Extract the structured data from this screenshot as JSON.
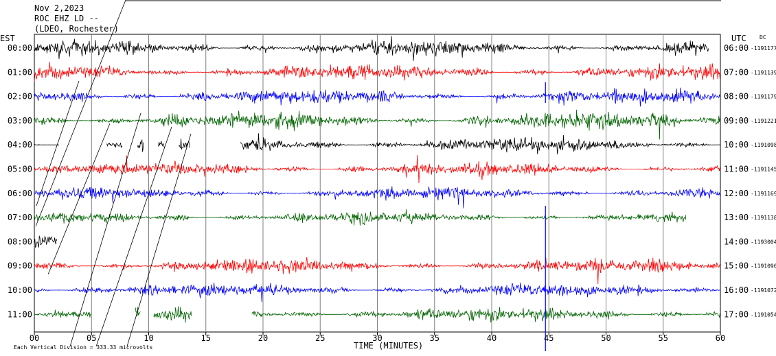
{
  "header": {
    "date": "Nov 2,2023",
    "station": "ROC EHZ LD --",
    "network": "(LDEO, Rochester)"
  },
  "left_label": "EST",
  "right_label": "UTC",
  "dc_label": "DC",
  "footer": {
    "xlabel": "TIME (MINUTES)",
    "scale_note": "Each Vertical Division = 333.33 microvolts"
  },
  "colors": {
    "black": "#000000",
    "red": "#ff0000",
    "blue": "#0000ff",
    "green": "#006400"
  },
  "chart_data": {
    "type": "line",
    "title": "Nov 2,2023 ROC EHZ LD -- (LDEO, Rochester)",
    "xlabel": "TIME (MINUTES)",
    "ylabel": "",
    "xlim": [
      0,
      60
    ],
    "x_ticks": [
      "00",
      "05",
      "10",
      "15",
      "20",
      "25",
      "30",
      "35",
      "40",
      "45",
      "50",
      "55",
      "60"
    ],
    "grid": true,
    "rows": [
      {
        "est": "00:00",
        "utc": "06:00",
        "dc": "-1191177",
        "color": "black",
        "start": 0,
        "end": 59,
        "level": 0.85
      },
      {
        "est": "01:00",
        "utc": "07:00",
        "dc": "-1191139",
        "color": "red",
        "start": 0,
        "end": 60,
        "level": 0.9
      },
      {
        "est": "02:00",
        "utc": "08:00",
        "dc": "-1191179",
        "color": "blue",
        "start": 0,
        "end": 60,
        "level": 0.85
      },
      {
        "est": "03:00",
        "utc": "09:00",
        "dc": "-1191221",
        "color": "green",
        "start": 0,
        "end": 60,
        "level": 1.0
      },
      {
        "est": "04:00",
        "utc": "10:00",
        "dc": "-1191098",
        "color": "black",
        "start": 0,
        "end": 60,
        "level": 0.85
      },
      {
        "est": "05:00",
        "utc": "11:00",
        "dc": "-1191145",
        "color": "red",
        "start": 0,
        "end": 60,
        "level": 0.75
      },
      {
        "est": "06:00",
        "utc": "12:00",
        "dc": "-1191169",
        "color": "blue",
        "start": 0,
        "end": 60,
        "level": 0.7
      },
      {
        "est": "07:00",
        "utc": "13:00",
        "dc": "-1191138",
        "color": "green",
        "start": 0,
        "end": 57,
        "level": 0.65
      },
      {
        "est": "08:00",
        "utc": "14:00",
        "dc": "-1193004",
        "color": "black",
        "start": 0,
        "end": 2,
        "level": 1.0
      },
      {
        "est": "09:00",
        "utc": "15:00",
        "dc": "-1191090",
        "color": "red",
        "start": 0,
        "end": 60,
        "level": 0.8
      },
      {
        "est": "10:00",
        "utc": "16:00",
        "dc": "-1191072",
        "color": "blue",
        "start": 0,
        "end": 60,
        "level": 0.75
      },
      {
        "est": "11:00",
        "utc": "17:00",
        "dc": "-1191054",
        "color": "green",
        "start": 0,
        "end": 60,
        "level": 0.8
      }
    ],
    "gaps": [
      {
        "row": 4,
        "from": 2.2,
        "to": 6.3
      },
      {
        "row": 4,
        "from": 7.7,
        "to": 9.0
      },
      {
        "row": 4,
        "from": 9.6,
        "to": 10.8
      },
      {
        "row": 4,
        "from": 11.4,
        "to": 12.6
      },
      {
        "row": 4,
        "from": 13.6,
        "to": 18.0
      },
      {
        "row": 11,
        "from": 5.0,
        "to": 8.8
      },
      {
        "row": 11,
        "from": 9.3,
        "to": 10.4
      },
      {
        "row": 11,
        "from": 13.8,
        "to": 19.0
      }
    ]
  }
}
